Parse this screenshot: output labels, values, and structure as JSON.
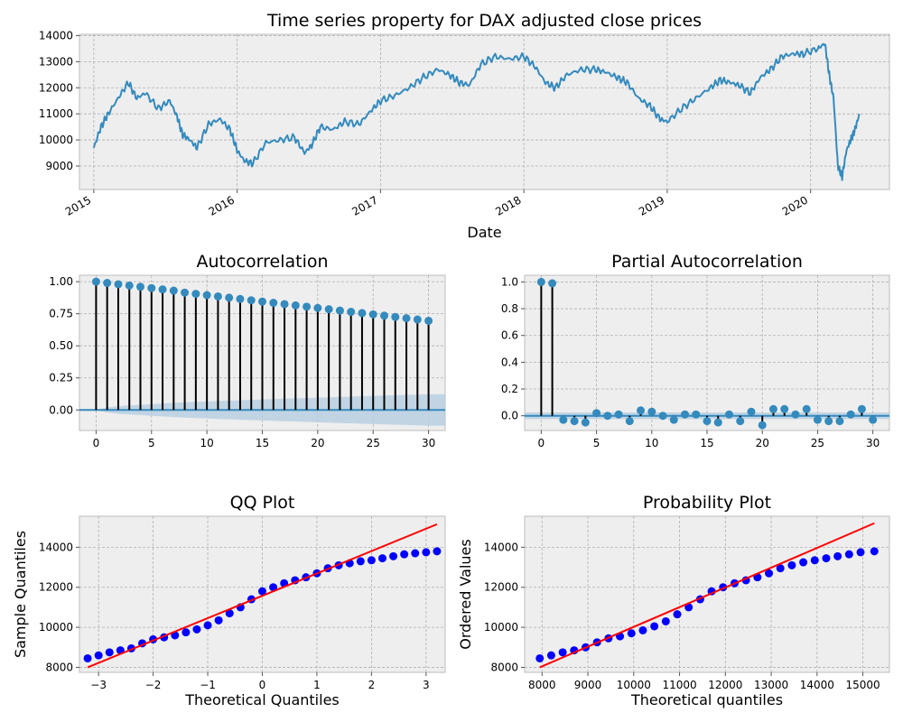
{
  "colors": {
    "price_line": "#348abd",
    "stem": "#000000",
    "marker": "#348abd",
    "conf_band": "#b9cfe2",
    "qq_points": "#0000ff",
    "qq_line": "#ff0000"
  },
  "chart_data": [
    {
      "id": "timeseries",
      "type": "line",
      "title": "Time series property for DAX adjusted close prices",
      "xlabel": "Date",
      "ylabel": "",
      "xlim": [
        2014.9,
        2020.55
      ],
      "ylim": [
        8100,
        14050
      ],
      "x_ticks": [
        2015,
        2016,
        2017,
        2018,
        2019,
        2020
      ],
      "x_tick_labels": [
        "2015",
        "2016",
        "2017",
        "2018",
        "2019",
        "2020"
      ],
      "y_ticks": [
        9000,
        10000,
        11000,
        12000,
        13000,
        14000
      ],
      "y_tick_labels": [
        "9000",
        "10000",
        "11000",
        "12000",
        "13000",
        "14000"
      ],
      "grid": true,
      "series": [
        {
          "x": [
            2015.0,
            2015.05,
            2015.1,
            2015.17,
            2015.24,
            2015.3,
            2015.36,
            2015.45,
            2015.53,
            2015.58,
            2015.62,
            2015.67,
            2015.72,
            2015.8,
            2015.88,
            2015.95,
            2016.0,
            2016.05,
            2016.11,
            2016.2,
            2016.3,
            2016.4,
            2016.47,
            2016.52,
            2016.58,
            2016.67,
            2016.75,
            2016.85,
            2016.93,
            2017.0,
            2017.1,
            2017.2,
            2017.3,
            2017.4,
            2017.48,
            2017.55,
            2017.62,
            2017.7,
            2017.8,
            2017.9,
            2018.0,
            2018.08,
            2018.15,
            2018.22,
            2018.3,
            2018.4,
            2018.5,
            2018.57,
            2018.65,
            2018.72,
            2018.8,
            2018.88,
            2018.95,
            2019.0,
            2019.1,
            2019.2,
            2019.3,
            2019.37,
            2019.44,
            2019.5,
            2019.58,
            2019.65,
            2019.72,
            2019.8,
            2019.88,
            2019.95,
            2020.05,
            2020.1,
            2020.13,
            2020.16,
            2020.19,
            2020.22,
            2020.25,
            2020.28,
            2020.31,
            2020.34
          ],
          "values": [
            9700,
            10500,
            11000,
            11600,
            12200,
            11600,
            11800,
            11200,
            11500,
            10900,
            10200,
            10000,
            9700,
            10600,
            10800,
            10400,
            9600,
            9200,
            9100,
            9900,
            10000,
            10100,
            9500,
            9800,
            10500,
            10400,
            10700,
            10600,
            11100,
            11500,
            11700,
            12000,
            12400,
            12700,
            12500,
            12200,
            12100,
            12900,
            13200,
            13100,
            13200,
            12800,
            12200,
            12000,
            12500,
            12700,
            12700,
            12600,
            12400,
            12200,
            11600,
            11300,
            10800,
            10700,
            11200,
            11600,
            12000,
            12300,
            12200,
            12100,
            11800,
            12400,
            12700,
            13200,
            13300,
            13300,
            13500,
            13700,
            12500,
            11600,
            9000,
            8600,
            9600,
            10000,
            10400,
            11000
          ]
        }
      ]
    },
    {
      "id": "acf",
      "type": "stem",
      "title": "Autocorrelation",
      "xlim": [
        -1.5,
        31.5
      ],
      "ylim": [
        -0.16,
        1.05
      ],
      "x_ticks": [
        0,
        5,
        10,
        15,
        20,
        25,
        30
      ],
      "x_tick_labels": [
        "0",
        "5",
        "10",
        "15",
        "20",
        "25",
        "30"
      ],
      "y_ticks": [
        0.0,
        0.25,
        0.5,
        0.75,
        1.0
      ],
      "y_tick_labels": [
        "0.00",
        "0.25",
        "0.50",
        "0.75",
        "1.00"
      ],
      "grid": true,
      "lags": [
        0,
        1,
        2,
        3,
        4,
        5,
        6,
        7,
        8,
        9,
        10,
        11,
        12,
        13,
        14,
        15,
        16,
        17,
        18,
        19,
        20,
        21,
        22,
        23,
        24,
        25,
        26,
        27,
        28,
        29,
        30
      ],
      "values": [
        1.0,
        0.99,
        0.98,
        0.97,
        0.96,
        0.95,
        0.94,
        0.93,
        0.915,
        0.905,
        0.895,
        0.885,
        0.875,
        0.865,
        0.855,
        0.845,
        0.835,
        0.825,
        0.815,
        0.805,
        0.795,
        0.785,
        0.775,
        0.765,
        0.755,
        0.745,
        0.735,
        0.725,
        0.715,
        0.705,
        0.695
      ],
      "conf_band": [
        0.0,
        0.02,
        0.03,
        0.035,
        0.04,
        0.045,
        0.05,
        0.055,
        0.06,
        0.063,
        0.066,
        0.07,
        0.073,
        0.076,
        0.079,
        0.082,
        0.085,
        0.088,
        0.09,
        0.093,
        0.096,
        0.099,
        0.102,
        0.104,
        0.107,
        0.11,
        0.112,
        0.115,
        0.117,
        0.12,
        0.122
      ]
    },
    {
      "id": "pacf",
      "type": "stem",
      "title": "Partial Autocorrelation",
      "xlim": [
        -1.5,
        31.5
      ],
      "ylim": [
        -0.11,
        1.05
      ],
      "x_ticks": [
        0,
        5,
        10,
        15,
        20,
        25,
        30
      ],
      "x_tick_labels": [
        "0",
        "5",
        "10",
        "15",
        "20",
        "25",
        "30"
      ],
      "y_ticks": [
        0.0,
        0.2,
        0.4,
        0.6,
        0.8,
        1.0
      ],
      "y_tick_labels": [
        "0.0",
        "0.2",
        "0.4",
        "0.6",
        "0.8",
        "1.0"
      ],
      "grid": true,
      "lags": [
        0,
        1,
        2,
        3,
        4,
        5,
        6,
        7,
        8,
        9,
        10,
        11,
        12,
        13,
        14,
        15,
        16,
        17,
        18,
        19,
        20,
        21,
        22,
        23,
        24,
        25,
        26,
        27,
        28,
        29,
        30
      ],
      "values": [
        1.0,
        0.99,
        -0.03,
        -0.04,
        -0.05,
        0.02,
        0.0,
        0.01,
        -0.04,
        0.04,
        0.03,
        0.0,
        -0.03,
        0.01,
        0.01,
        -0.04,
        -0.05,
        0.01,
        -0.04,
        0.03,
        -0.07,
        0.05,
        0.05,
        0.01,
        0.05,
        -0.03,
        -0.04,
        -0.04,
        0.01,
        0.05,
        -0.03
      ],
      "conf_band": 0.025
    },
    {
      "id": "qq",
      "type": "scatter",
      "title": "QQ Plot",
      "xlabel": "Theoretical Quantiles",
      "ylabel": "Sample Quantiles",
      "xlim": [
        -3.35,
        3.35
      ],
      "ylim": [
        7750,
        15550
      ],
      "x_ticks": [
        -3,
        -2,
        -1,
        0,
        1,
        2,
        3
      ],
      "x_tick_labels": [
        "−3",
        "−2",
        "−1",
        "0",
        "1",
        "2",
        "3"
      ],
      "y_ticks": [
        8000,
        10000,
        12000,
        14000
      ],
      "y_tick_labels": [
        "8000",
        "10000",
        "12000",
        "14000"
      ],
      "grid": true,
      "points_x": [
        -3.2,
        -3.0,
        -2.8,
        -2.6,
        -2.4,
        -2.2,
        -2.0,
        -1.8,
        -1.6,
        -1.4,
        -1.2,
        -1.0,
        -0.8,
        -0.6,
        -0.4,
        -0.2,
        0.0,
        0.2,
        0.4,
        0.6,
        0.8,
        1.0,
        1.2,
        1.4,
        1.6,
        1.8,
        2.0,
        2.2,
        2.4,
        2.6,
        2.8,
        3.0,
        3.2
      ],
      "points_y": [
        8450,
        8600,
        8750,
        8850,
        8950,
        9200,
        9400,
        9500,
        9600,
        9750,
        9900,
        10100,
        10350,
        10700,
        11000,
        11400,
        11800,
        12000,
        12200,
        12350,
        12500,
        12700,
        12950,
        13100,
        13200,
        13300,
        13350,
        13450,
        13550,
        13650,
        13700,
        13750,
        13800
      ],
      "fit_line": {
        "x": [
          -3.2,
          3.2
        ],
        "y": [
          8000,
          15150
        ]
      }
    },
    {
      "id": "prob",
      "type": "scatter",
      "title": "Probability Plot",
      "xlabel": "Theoretical quantiles",
      "ylabel": "Ordered Values",
      "xlim": [
        7620,
        15580
      ],
      "ylim": [
        7750,
        15550
      ],
      "x_ticks": [
        8000,
        9000,
        10000,
        11000,
        12000,
        13000,
        14000,
        15000
      ],
      "x_tick_labels": [
        "8000",
        "9000",
        "10000",
        "11000",
        "12000",
        "13000",
        "14000",
        "15000"
      ],
      "y_ticks": [
        8000,
        10000,
        12000,
        14000
      ],
      "y_tick_labels": [
        "8000",
        "10000",
        "12000",
        "14000"
      ],
      "grid": true,
      "points_x": [
        7950,
        8200,
        8450,
        8700,
        8950,
        9200,
        9450,
        9700,
        9950,
        10200,
        10450,
        10700,
        10950,
        11200,
        11450,
        11700,
        11950,
        12200,
        12450,
        12700,
        12950,
        13200,
        13450,
        13700,
        13950,
        14200,
        14450,
        14700,
        14950,
        15250
      ],
      "points_y": [
        8450,
        8600,
        8750,
        8850,
        9000,
        9250,
        9450,
        9550,
        9700,
        9850,
        10050,
        10300,
        10650,
        11000,
        11400,
        11800,
        12000,
        12200,
        12350,
        12500,
        12700,
        12950,
        13100,
        13250,
        13350,
        13450,
        13550,
        13650,
        13750,
        13800
      ],
      "fit_line": {
        "x": [
          7950,
          15250
        ],
        "y": [
          8000,
          15200
        ]
      }
    }
  ]
}
